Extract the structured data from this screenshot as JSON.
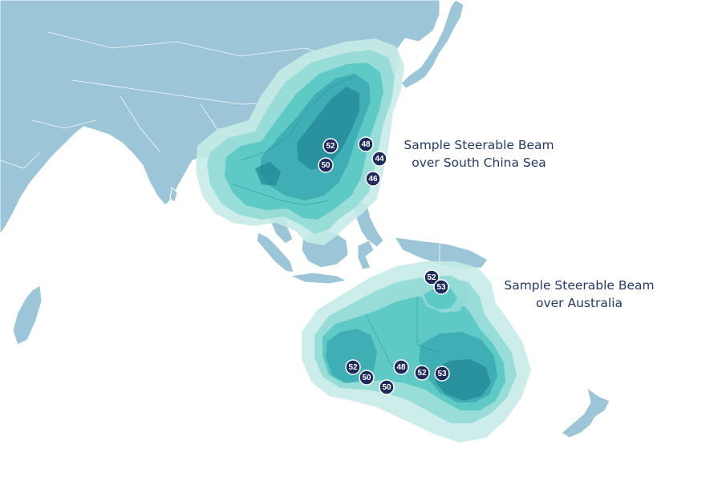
{
  "beams": [
    {
      "id": "south-china-sea",
      "label_lines": [
        "Sample Steerable Beam",
        "over South China Sea"
      ],
      "values": [
        "52",
        "48",
        "50",
        "44",
        "46"
      ]
    },
    {
      "id": "australia",
      "label_lines": [
        "Sample Steerable Beam",
        "over Australia"
      ],
      "values": [
        "52",
        "53",
        "52",
        "50",
        "48",
        "50",
        "52",
        "53"
      ]
    }
  ],
  "colors": {
    "ocean": "#ffffff",
    "land": "#9cc6d8",
    "beam_outer": "#c6ebe8",
    "beam_inner": "#238b98",
    "badge": "#1f2a5c",
    "label_text": "#233a66"
  }
}
